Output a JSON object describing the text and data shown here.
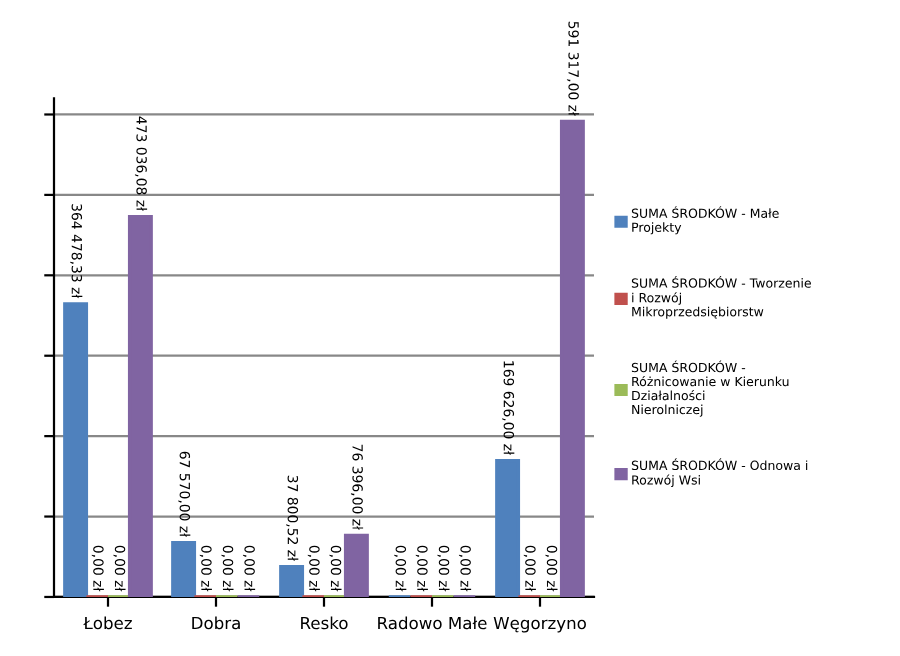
{
  "chart_data": {
    "type": "bar",
    "categories": [
      "Łobez",
      "Dobra",
      "Resko",
      "Radowo Małe",
      "Węgorzyno"
    ],
    "series": [
      {
        "name": "SUMA ŚRODKÓW - Małe Projekty",
        "color": "#4f81bd",
        "values": [
          364478.33,
          67570.0,
          37800.52,
          0,
          169626.0
        ],
        "value_labels": [
          "364 478,33 zł",
          "67 570,00 zł",
          "37 800,52 zł",
          "0,00 zł",
          "169 626,00 zł"
        ]
      },
      {
        "name": "SUMA ŚRODKÓW - Tworzenie i Rozwój Mikroprzedsiębiorstw",
        "color": "#c0504d",
        "values": [
          0,
          0,
          0,
          0,
          0
        ],
        "value_labels": [
          "0,00 zł",
          "0,00 zł",
          "0,00 zł",
          "0,00 zł",
          "0,00 zł"
        ]
      },
      {
        "name": "SUMA ŚRODKÓW - Różnicowanie w Kierunku Działalności Nierolniczej",
        "color": "#9bbb59",
        "values": [
          0,
          0,
          0,
          0,
          0
        ],
        "value_labels": [
          "0,00 zł",
          "0,00 zł",
          "0,00 zł",
          "0,00 zł",
          "0,00 zł"
        ]
      },
      {
        "name": "SUMA ŚRODKÓW - Odnowa i Rozwój Wsi",
        "color": "#8064a2",
        "values": [
          473036.08,
          0,
          76396.0,
          0,
          591317.0
        ],
        "value_labels": [
          "473 036,08 zł",
          "0,00 zł",
          "76 396,00 zł",
          "0,00 zł",
          "591 317,00 zł"
        ]
      }
    ],
    "ylim": [
      0,
      620000
    ],
    "yticks": [
      {
        "value": 0,
        "label": null
      },
      {
        "value": 100000,
        "label": null
      },
      {
        "value": 200000,
        "label": null
      },
      {
        "value": 300000,
        "label": null
      },
      {
        "value": 400000,
        "label": null
      },
      {
        "value": 500000,
        "label": null
      },
      {
        "value": 600000,
        "label": null
      }
    ],
    "tick_labels": "x",
    "grid": "y",
    "legend": "right"
  }
}
